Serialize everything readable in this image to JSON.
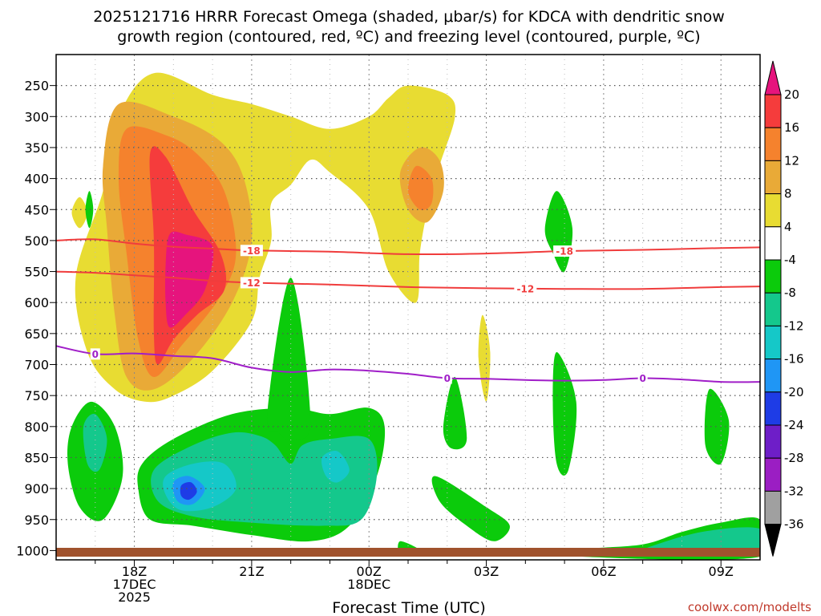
{
  "chart_data": {
    "type": "contour",
    "title_line1": "2025121716 HRRR Forecast Omega (shaded, μbar/s) for KDCA with dendritic snow",
    "title_line2": "growth region (contoured, red, ºC) and freezing level (contoured, purple, ºC)",
    "xlabel": "Forecast Time (UTC)",
    "ylabel": "",
    "credit": "coolwx.com/modelts",
    "x_ticks": [
      {
        "hour": 18,
        "label": "18Z",
        "sub1": "17DEC",
        "sub2": "2025"
      },
      {
        "hour": 21,
        "label": "21Z",
        "sub1": "",
        "sub2": ""
      },
      {
        "hour": 24,
        "label": "00Z",
        "sub1": "18DEC",
        "sub2": ""
      },
      {
        "hour": 27,
        "label": "03Z",
        "sub1": "",
        "sub2": ""
      },
      {
        "hour": 30,
        "label": "06Z",
        "sub1": "",
        "sub2": ""
      },
      {
        "hour": 33,
        "label": "09Z",
        "sub1": "",
        "sub2": ""
      }
    ],
    "x_range_hours": [
      16,
      34
    ],
    "y_ticks": [
      250,
      300,
      350,
      400,
      450,
      500,
      550,
      600,
      650,
      700,
      750,
      800,
      850,
      900,
      950,
      1000
    ],
    "y_range_hPa": [
      200,
      1015
    ],
    "colorbar": {
      "labels": [
        "20",
        "16",
        "12",
        "8",
        "4",
        "-4",
        "-8",
        "-12",
        "-16",
        "-20",
        "-24",
        "-28",
        "-32",
        "-36"
      ],
      "colors": [
        "#f53c3c",
        "#f5822d",
        "#e9aa37",
        "#e8dc32",
        "#ffffff",
        "#0bcb0b",
        "#14c88c",
        "#15c8c8",
        "#1f96f5",
        "#1e3ce6",
        "#6e1ec8",
        "#9b1ec3",
        "#a0a0a0"
      ],
      "top_arrow_color": "#e6147d",
      "bottom_arrow_color": "#000000"
    },
    "contours": [
      {
        "name": "dendritic-top",
        "label": "-18",
        "color": "#f03c3c",
        "points": [
          [
            16,
            500
          ],
          [
            17,
            498
          ],
          [
            18,
            505
          ],
          [
            19,
            510
          ],
          [
            20,
            513
          ],
          [
            21,
            516
          ],
          [
            23,
            518
          ],
          [
            25,
            522
          ],
          [
            27,
            521
          ],
          [
            29,
            517
          ],
          [
            31,
            515
          ],
          [
            33,
            512
          ],
          [
            34,
            511
          ]
        ],
        "label_hours": [
          21,
          29
        ]
      },
      {
        "name": "dendritic-bottom",
        "label": "-12",
        "color": "#f03c3c",
        "points": [
          [
            16,
            550
          ],
          [
            17,
            552
          ],
          [
            18,
            556
          ],
          [
            19,
            560
          ],
          [
            20,
            565
          ],
          [
            21,
            568
          ],
          [
            23,
            571
          ],
          [
            25,
            575
          ],
          [
            27,
            577
          ],
          [
            29,
            578
          ],
          [
            31,
            578
          ],
          [
            33,
            575
          ],
          [
            34,
            574
          ]
        ],
        "label_hours": [
          21,
          28
        ]
      },
      {
        "name": "freezing-level",
        "label": "0",
        "color": "#a01ec8",
        "points": [
          [
            16,
            670
          ],
          [
            17,
            683
          ],
          [
            18,
            682
          ],
          [
            19,
            686
          ],
          [
            20,
            690
          ],
          [
            21,
            705
          ],
          [
            22,
            712
          ],
          [
            23,
            708
          ],
          [
            24,
            710
          ],
          [
            25,
            715
          ],
          [
            26,
            722
          ],
          [
            27,
            723
          ],
          [
            28,
            725
          ],
          [
            29,
            726
          ],
          [
            30,
            725
          ],
          [
            31,
            722
          ],
          [
            32,
            724
          ],
          [
            33,
            728
          ],
          [
            34,
            728
          ]
        ],
        "label_hours": [
          17,
          26,
          31
        ]
      }
    ],
    "omega_shaded": [
      {
        "value_bin": "4 to 8",
        "color": "#e8dc32",
        "points": [
          [
            18.5,
            230
          ],
          [
            20,
            265
          ],
          [
            21,
            280
          ],
          [
            22,
            300
          ],
          [
            23,
            320
          ],
          [
            24,
            300
          ],
          [
            24.5,
            270
          ],
          [
            25,
            250
          ],
          [
            26,
            265
          ],
          [
            26.2,
            300
          ],
          [
            25.8,
            380
          ],
          [
            25.5,
            450
          ],
          [
            25.3,
            520
          ],
          [
            25.2,
            600
          ],
          [
            24.5,
            550
          ],
          [
            24,
            450
          ],
          [
            23,
            390
          ],
          [
            22.5,
            370
          ],
          [
            22,
            410
          ],
          [
            21.5,
            440
          ],
          [
            21.5,
            500
          ],
          [
            21.2,
            560
          ],
          [
            21,
            630
          ],
          [
            20,
            710
          ],
          [
            19,
            750
          ],
          [
            18.3,
            760
          ],
          [
            17.5,
            740
          ],
          [
            16.8,
            680
          ],
          [
            16.5,
            560
          ],
          [
            17.2,
            420
          ],
          [
            17.6,
            300
          ]
        ]
      },
      {
        "value_bin": "4 to 8 (small)",
        "color": "#e8dc32",
        "points": [
          [
            16.6,
            430
          ],
          [
            16.8,
            455
          ],
          [
            16.6,
            480
          ],
          [
            16.4,
            455
          ]
        ]
      },
      {
        "value_bin": "4 to 8 (small)",
        "color": "#e8dc32",
        "points": [
          [
            26.9,
            620
          ],
          [
            27.1,
            680
          ],
          [
            27,
            760
          ],
          [
            26.8,
            690
          ]
        ]
      },
      {
        "value_bin": "8 to 12",
        "color": "#e9aa37",
        "points": [
          [
            17.6,
            280
          ],
          [
            19,
            300
          ],
          [
            20.2,
            340
          ],
          [
            20.8,
            400
          ],
          [
            21,
            500
          ],
          [
            20.5,
            600
          ],
          [
            19.5,
            690
          ],
          [
            18.5,
            740
          ],
          [
            17.8,
            720
          ],
          [
            17.5,
            620
          ],
          [
            17.3,
            480
          ],
          [
            17.2,
            380
          ]
        ]
      },
      {
        "value_bin": "8 to 12 (east)",
        "color": "#e9aa37",
        "points": [
          [
            25.3,
            350
          ],
          [
            25.8,
            370
          ],
          [
            25.9,
            420
          ],
          [
            25.5,
            470
          ],
          [
            25,
            450
          ],
          [
            24.8,
            390
          ]
        ]
      },
      {
        "value_bin": "12 to 16",
        "color": "#f5822d",
        "points": [
          [
            17.8,
            320
          ],
          [
            18.8,
            330
          ],
          [
            19.6,
            360
          ],
          [
            20.3,
            420
          ],
          [
            20.6,
            520
          ],
          [
            20.2,
            590
          ],
          [
            19.2,
            670
          ],
          [
            18.5,
            720
          ],
          [
            18.1,
            660
          ],
          [
            17.8,
            520
          ],
          [
            17.6,
            400
          ]
        ]
      },
      {
        "value_bin": "12 to 16 (east)",
        "color": "#f5822d",
        "points": [
          [
            25.2,
            380
          ],
          [
            25.6,
            400
          ],
          [
            25.6,
            440
          ],
          [
            25.3,
            450
          ],
          [
            25,
            420
          ]
        ]
      },
      {
        "value_bin": "16 to 20",
        "color": "#f53c3c",
        "points": [
          [
            18.4,
            360
          ],
          [
            18.8,
            365
          ],
          [
            19.5,
            450
          ],
          [
            20.2,
            520
          ],
          [
            20.3,
            580
          ],
          [
            19.6,
            620
          ],
          [
            19,
            660
          ],
          [
            18.6,
            700
          ],
          [
            18.5,
            650
          ],
          [
            18.5,
            500
          ]
        ]
      },
      {
        "value_bin": ">20",
        "color": "#e6147d",
        "points": [
          [
            18.9,
            490
          ],
          [
            19.3,
            490
          ],
          [
            20,
            510
          ],
          [
            19.8,
            580
          ],
          [
            19.3,
            620
          ],
          [
            18.9,
            640
          ],
          [
            18.8,
            600
          ],
          [
            18.8,
            540
          ]
        ]
      },
      {
        "value_bin": "-4 to -8",
        "color": "#0bcb0b",
        "points": [
          [
            18.2,
            860
          ],
          [
            19,
            820
          ],
          [
            20.5,
            780
          ],
          [
            22,
            770
          ],
          [
            23,
            780
          ],
          [
            24,
            770
          ],
          [
            24.4,
            800
          ],
          [
            24.2,
            880
          ],
          [
            23.5,
            960
          ],
          [
            22.5,
            985
          ],
          [
            21,
            975
          ],
          [
            19.5,
            960
          ],
          [
            18.4,
            950
          ],
          [
            18.1,
            900
          ]
        ]
      },
      {
        "value_bin": "-4 to -8 (spike)",
        "color": "#0bcb0b",
        "points": [
          [
            21.4,
            780
          ],
          [
            22,
            560
          ],
          [
            22.5,
            790
          ],
          [
            22,
            820
          ],
          [
            21.7,
            810
          ]
        ]
      },
      {
        "value_bin": "-4 to -8 (west)",
        "color": "#0bcb0b",
        "points": [
          [
            16.4,
            800
          ],
          [
            16.9,
            760
          ],
          [
            17.5,
            800
          ],
          [
            17.7,
            880
          ],
          [
            17.2,
            950
          ],
          [
            16.6,
            930
          ],
          [
            16.3,
            860
          ]
        ]
      },
      {
        "value_bin": "-4 to -8 (small)",
        "color": "#0bcb0b",
        "points": [
          [
            16.85,
            420
          ],
          [
            16.95,
            450
          ],
          [
            16.85,
            480
          ],
          [
            16.75,
            450
          ]
        ]
      },
      {
        "value_bin": "-4 to -8 (small)",
        "color": "#0bcb0b",
        "points": [
          [
            28.8,
            420
          ],
          [
            29.2,
            480
          ],
          [
            29,
            550
          ],
          [
            28.7,
            520
          ],
          [
            28.5,
            480
          ]
        ]
      },
      {
        "value_bin": "-4 to -8 (small)",
        "color": "#0bcb0b",
        "points": [
          [
            28.8,
            680
          ],
          [
            29.3,
            760
          ],
          [
            29.1,
            870
          ],
          [
            28.8,
            860
          ],
          [
            28.7,
            760
          ]
        ]
      },
      {
        "value_bin": "-4 to -8 (small)",
        "color": "#0bcb0b",
        "points": [
          [
            26.2,
            720
          ],
          [
            26.5,
            820
          ],
          [
            26.1,
            835
          ],
          [
            25.9,
            800
          ]
        ]
      },
      {
        "value_bin": "-4 to -8 (small)",
        "color": "#0bcb0b",
        "points": [
          [
            25.7,
            880
          ],
          [
            27,
            930
          ],
          [
            27.6,
            960
          ],
          [
            27.2,
            985
          ],
          [
            26.5,
            960
          ],
          [
            25.8,
            920
          ]
        ]
      },
      {
        "value_bin": "-4 to -8 (small)",
        "color": "#0bcb0b",
        "points": [
          [
            32.7,
            740
          ],
          [
            33.2,
            790
          ],
          [
            33,
            860
          ],
          [
            32.6,
            830
          ]
        ]
      },
      {
        "value_bin": "-4 to -8 (small)",
        "color": "#0bcb0b",
        "points": [
          [
            24.8,
            985
          ],
          [
            25.3,
            1000
          ],
          [
            24.8,
            1005
          ]
        ]
      },
      {
        "value_bin": "-4 to -8 (bottom)",
        "color": "#0bcb0b",
        "points": [
          [
            29.5,
            998
          ],
          [
            31,
            990
          ],
          [
            32,
            970
          ],
          [
            33,
            955
          ],
          [
            34,
            950
          ],
          [
            34,
            1010
          ],
          [
            29.5,
            1010
          ]
        ]
      },
      {
        "value_bin": "-8 to -12",
        "color": "#14c88c",
        "points": [
          [
            18.5,
            870
          ],
          [
            19.5,
            830
          ],
          [
            20.5,
            810
          ],
          [
            21.2,
            815
          ],
          [
            21.6,
            830
          ],
          [
            22,
            860
          ],
          [
            22.3,
            830
          ],
          [
            23,
            820
          ],
          [
            24,
            820
          ],
          [
            24.2,
            880
          ],
          [
            23.8,
            950
          ],
          [
            22.8,
            960
          ],
          [
            21,
            955
          ],
          [
            19.5,
            945
          ],
          [
            18.6,
            920
          ]
        ]
      },
      {
        "value_bin": "-8 to -12 (west)",
        "color": "#14c88c",
        "points": [
          [
            16.7,
            800
          ],
          [
            17,
            780
          ],
          [
            17.3,
            820
          ],
          [
            17.1,
            870
          ],
          [
            16.8,
            860
          ]
        ]
      },
      {
        "value_bin": "-8 to -12 (bottom)",
        "color": "#14c88c",
        "points": [
          [
            31,
            998
          ],
          [
            32.5,
            970
          ],
          [
            34,
            965
          ],
          [
            34,
            1005
          ],
          [
            31,
            1005
          ]
        ]
      },
      {
        "value_bin": "-12 to -16",
        "color": "#15c8c8",
        "points": [
          [
            18.8,
            880
          ],
          [
            19.5,
            860
          ],
          [
            20.3,
            860
          ],
          [
            20.6,
            900
          ],
          [
            20,
            930
          ],
          [
            19.2,
            935
          ],
          [
            18.8,
            910
          ]
        ]
      },
      {
        "value_bin": "-12 to -16 (small)",
        "color": "#15c8c8",
        "points": [
          [
            22.8,
            850
          ],
          [
            23.2,
            840
          ],
          [
            23.5,
            870
          ],
          [
            23.2,
            890
          ],
          [
            22.9,
            880
          ]
        ]
      },
      {
        "value_bin": "-16 to -20",
        "color": "#1f96f5",
        "points": [
          [
            19,
            890
          ],
          [
            19.4,
            880
          ],
          [
            19.8,
            900
          ],
          [
            19.5,
            925
          ],
          [
            19.1,
            920
          ]
        ]
      },
      {
        "value_bin": "-20 to -24",
        "color": "#1e3ce6",
        "points": [
          [
            19.2,
            895
          ],
          [
            19.45,
            890
          ],
          [
            19.6,
            905
          ],
          [
            19.4,
            918
          ],
          [
            19.2,
            912
          ]
        ]
      }
    ]
  }
}
